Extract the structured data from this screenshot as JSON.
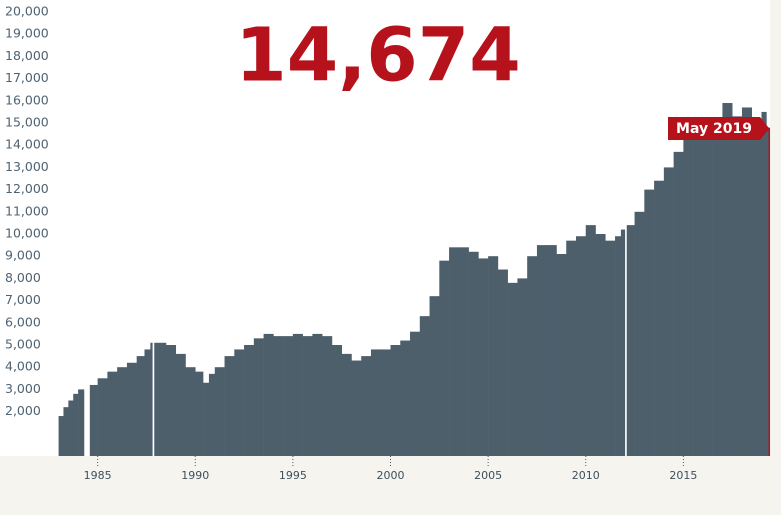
{
  "chart_data": {
    "type": "histogram",
    "headline": "14,674",
    "current_label": "May 2019",
    "color": "#4e5f6c",
    "accent": "#b5121b",
    "bins": [
      1983.0,
      1983.25,
      1983.5,
      1983.75,
      1984.0,
      1984.3,
      1984.6,
      1985.0,
      1985.5,
      1986.0,
      1986.5,
      1987.0,
      1987.4,
      1987.7,
      1987.8,
      1987.9,
      1988.5,
      1989.0,
      1989.5,
      1990.0,
      1990.4,
      1990.7,
      1991.0,
      1991.5,
      1992.0,
      1992.5,
      1993.0,
      1993.5,
      1994.0,
      1994.5,
      1995.0,
      1995.5,
      1996.0,
      1996.5,
      1997.0,
      1997.5,
      1998.0,
      1998.5,
      1999.0,
      1999.5,
      2000.0,
      2000.5,
      2001.0,
      2001.5,
      2002.0,
      2002.5,
      2003.0,
      2003.5,
      2004.0,
      2004.5,
      2005.0,
      2005.5,
      2006.0,
      2006.5,
      2007.0,
      2007.5,
      2008.0,
      2008.5,
      2009.0,
      2009.5,
      2010.0,
      2010.5,
      2011.0,
      2011.5,
      2011.8,
      2012.0,
      2012.1,
      2012.5,
      2013.0,
      2013.5,
      2014.0,
      2014.5,
      2015.0,
      2015.5,
      2016.0,
      2016.5,
      2017.0,
      2017.5,
      2018.0,
      2018.5,
      2019.0,
      2019.25,
      2019.4
    ],
    "values": [
      1800,
      2200,
      2500,
      2800,
      3000,
      null,
      3200,
      3500,
      3800,
      4000,
      4200,
      4500,
      4800,
      5100,
      null,
      5100,
      5000,
      4600,
      4000,
      3800,
      3300,
      3700,
      4000,
      4500,
      4800,
      5000,
      5300,
      5500,
      5400,
      5400,
      5500,
      5400,
      5500,
      5400,
      5000,
      4600,
      4300,
      4500,
      4800,
      4800,
      5000,
      5200,
      5600,
      6300,
      7200,
      8800,
      9400,
      9400,
      9200,
      8900,
      9000,
      8400,
      7800,
      8000,
      9000,
      9500,
      9500,
      9100,
      9700,
      9900,
      10400,
      10000,
      9700,
      9900,
      10200,
      null,
      10400,
      11000,
      12000,
      12400,
      13000,
      13700,
      14300,
      14800,
      15000,
      15100,
      15900,
      15300,
      15700,
      15200,
      15500,
      14800
    ],
    "xlim": [
      1980,
      2020
    ],
    "xticks": [
      1985,
      1990,
      1995,
      2000,
      2005,
      2010,
      2015
    ],
    "ylim": [
      0,
      20000
    ],
    "yticks": [
      {
        "value": 2000,
        "label": "2,000"
      },
      {
        "value": 3000,
        "label": "3,000"
      },
      {
        "value": 4000,
        "label": "4,000"
      },
      {
        "value": 5000,
        "label": "5,000"
      },
      {
        "value": 6000,
        "label": "6,000"
      },
      {
        "value": 7000,
        "label": "7,000"
      },
      {
        "value": 8000,
        "label": "8,000"
      },
      {
        "value": 9000,
        "label": "9,000"
      },
      {
        "value": 10000,
        "label": "10,000"
      },
      {
        "value": 11000,
        "label": "11,000"
      },
      {
        "value": 12000,
        "label": "12,000"
      },
      {
        "value": 13000,
        "label": "13,000"
      },
      {
        "value": 14000,
        "label": "14,000"
      },
      {
        "value": 15000,
        "label": "15,000"
      },
      {
        "value": 16000,
        "label": "16,000"
      },
      {
        "value": 17000,
        "label": "17,000"
      },
      {
        "value": 18000,
        "label": "18,000"
      },
      {
        "value": 19000,
        "label": "19,000"
      },
      {
        "value": 20000,
        "label": "20,000"
      }
    ]
  }
}
